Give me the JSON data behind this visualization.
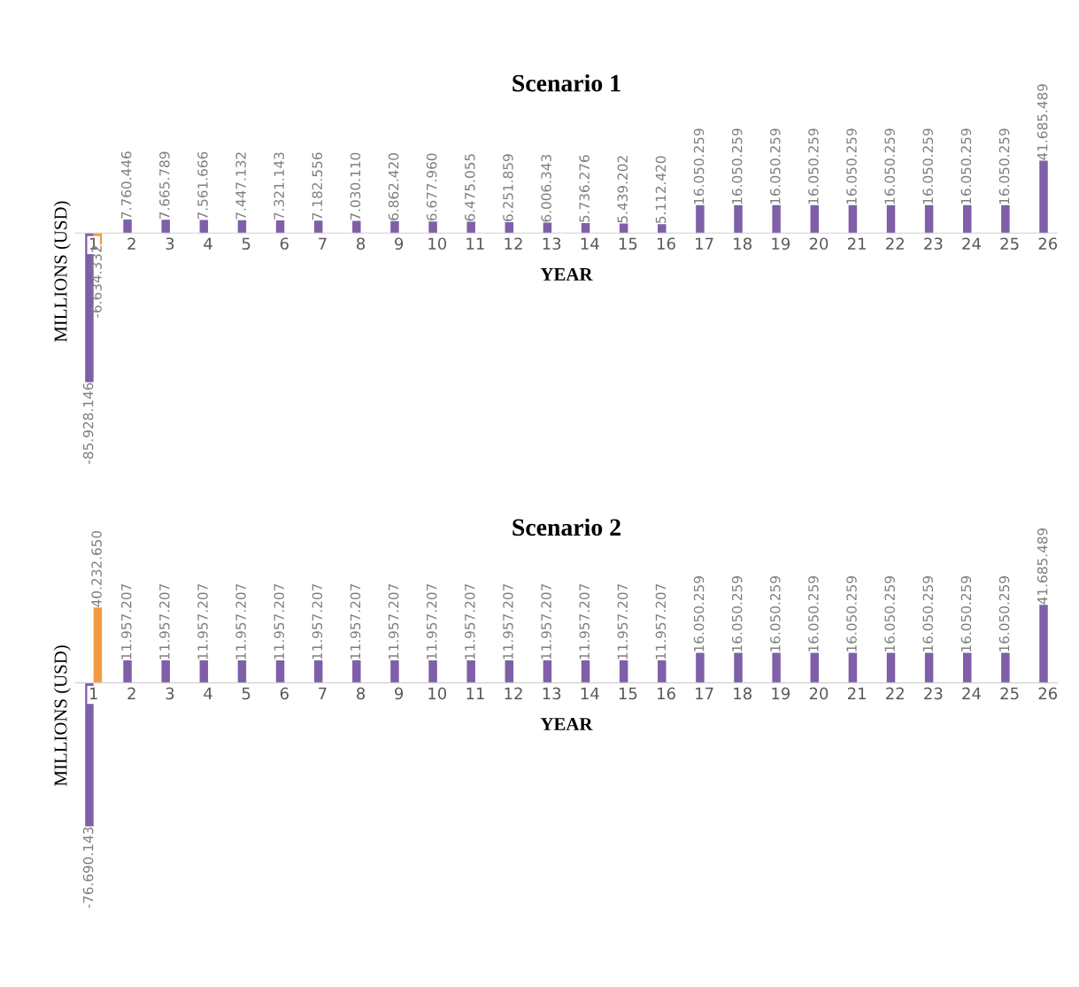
{
  "chart_data": [
    {
      "type": "bar",
      "title": "Scenario 1",
      "xlabel": "YEAR",
      "ylabel": "MILLIONS (USD)",
      "categories": [
        "1",
        "2",
        "3",
        "4",
        "5",
        "6",
        "7",
        "8",
        "9",
        "10",
        "11",
        "12",
        "13",
        "14",
        "15",
        "16",
        "17",
        "18",
        "19",
        "20",
        "21",
        "22",
        "23",
        "24",
        "25",
        "26"
      ],
      "series": [
        {
          "color": "#7f5fa8",
          "values": [
            -85928146,
            7760446,
            7665789,
            7561666,
            7447132,
            7321143,
            7182556,
            7030110,
            6862420,
            6677960,
            6475055,
            6251859,
            6006343,
            5736276,
            5439202,
            5112420,
            16050259,
            16050259,
            16050259,
            16050259,
            16050259,
            16050259,
            16050259,
            16050259,
            16050259,
            41685489
          ],
          "value_labels": [
            "-85.928.146",
            "7.760.446",
            "7.665.789",
            "7.561.666",
            "7.447.132",
            "7.321.143",
            "7.182.556",
            "7.030.110",
            "6.862.420",
            "6.677.960",
            "6.475.055",
            "6.251.859",
            "6.006.343",
            "5.736.276",
            "5.439.202",
            "5.112.420",
            "16.050.259",
            "16.050.259",
            "16.050.259",
            "16.050.259",
            "16.050.259",
            "16.050.259",
            "16.050.259",
            "16.050.259",
            "16.050.259",
            "41.685.489"
          ]
        },
        {
          "color": "#f39a45",
          "values": [
            -6634332,
            null,
            null,
            null,
            null,
            null,
            null,
            null,
            null,
            null,
            null,
            null,
            null,
            null,
            null,
            null,
            null,
            null,
            null,
            null,
            null,
            null,
            null,
            null,
            null,
            null
          ],
          "value_labels": [
            "-6.634.332",
            null,
            null,
            null,
            null,
            null,
            null,
            null,
            null,
            null,
            null,
            null,
            null,
            null,
            null,
            null,
            null,
            null,
            null,
            null,
            null,
            null,
            null,
            null,
            null,
            null
          ]
        }
      ]
    },
    {
      "type": "bar",
      "title": "Scenario 2",
      "xlabel": "YEAR",
      "ylabel": "MILLIONS (USD)",
      "categories": [
        "1",
        "2",
        "3",
        "4",
        "5",
        "6",
        "7",
        "8",
        "9",
        "10",
        "11",
        "12",
        "13",
        "14",
        "15",
        "16",
        "17",
        "18",
        "19",
        "20",
        "21",
        "22",
        "23",
        "24",
        "25",
        "26"
      ],
      "series": [
        {
          "color": "#7f5fa8",
          "values": [
            -76690143,
            11957207,
            11957207,
            11957207,
            11957207,
            11957207,
            11957207,
            11957207,
            11957207,
            11957207,
            11957207,
            11957207,
            11957207,
            11957207,
            11957207,
            11957207,
            16050259,
            16050259,
            16050259,
            16050259,
            16050259,
            16050259,
            16050259,
            16050259,
            16050259,
            41685489
          ],
          "value_labels": [
            "-76.690.143",
            "11.957.207",
            "11.957.207",
            "11.957.207",
            "11.957.207",
            "11.957.207",
            "11.957.207",
            "11.957.207",
            "11.957.207",
            "11.957.207",
            "11.957.207",
            "11.957.207",
            "11.957.207",
            "11.957.207",
            "11.957.207",
            "11.957.207",
            "16.050.259",
            "16.050.259",
            "16.050.259",
            "16.050.259",
            "16.050.259",
            "16.050.259",
            "16.050.259",
            "16.050.259",
            "16.050.259",
            "41.685.489"
          ]
        },
        {
          "color": "#f39a45",
          "values": [
            40232650,
            null,
            null,
            null,
            null,
            null,
            null,
            null,
            null,
            null,
            null,
            null,
            null,
            null,
            null,
            null,
            null,
            null,
            null,
            null,
            null,
            null,
            null,
            null,
            null,
            null
          ],
          "value_labels": [
            "40.232.650",
            null,
            null,
            null,
            null,
            null,
            null,
            null,
            null,
            null,
            null,
            null,
            null,
            null,
            null,
            null,
            null,
            null,
            null,
            null,
            null,
            null,
            null,
            null,
            null,
            null
          ]
        }
      ]
    }
  ]
}
